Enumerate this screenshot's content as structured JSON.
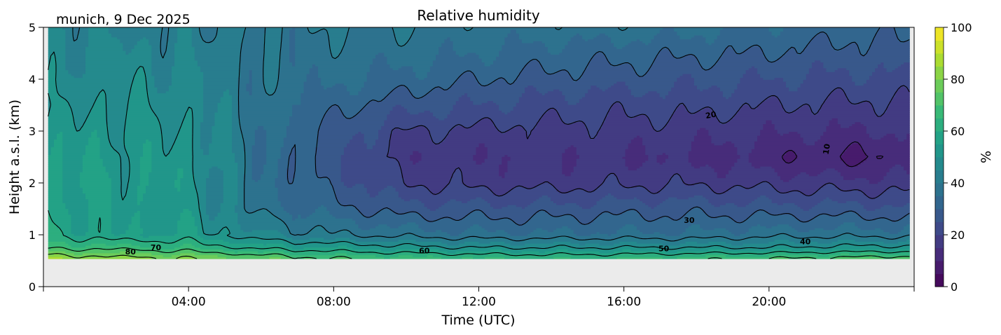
{
  "chart_data": {
    "type": "heatmap",
    "title": "Relative humidity",
    "subtitle": "munich, 9 Dec 2025",
    "xlabel": "Time (UTC)",
    "ylabel": "Height a.s.l. (km)",
    "colorbar_label": "%",
    "colormap": "viridis",
    "xlim_hours": [
      0,
      24
    ],
    "ylim_km": [
      0,
      5
    ],
    "data_extent": {
      "t": [
        0.13,
        23.87
      ],
      "h": [
        0.54,
        5
      ]
    },
    "x_ticks": [
      {
        "v": 0,
        "label": ""
      },
      {
        "v": 4,
        "label": "04:00"
      },
      {
        "v": 8,
        "label": "08:00"
      },
      {
        "v": 12,
        "label": "12:00"
      },
      {
        "v": 16,
        "label": "16:00"
      },
      {
        "v": 20,
        "label": "20:00"
      },
      {
        "v": 24,
        "label": ""
      }
    ],
    "y_ticks": [
      {
        "v": 0,
        "label": "0"
      },
      {
        "v": 1,
        "label": "1"
      },
      {
        "v": 2,
        "label": "2"
      },
      {
        "v": 3,
        "label": "3"
      },
      {
        "v": 4,
        "label": "4"
      },
      {
        "v": 5,
        "label": "5"
      }
    ],
    "colorbar_ticks": [
      {
        "v": 0,
        "label": "0"
      },
      {
        "v": 20,
        "label": "20"
      },
      {
        "v": 40,
        "label": "40"
      },
      {
        "v": 60,
        "label": "60"
      },
      {
        "v": 80,
        "label": "80"
      },
      {
        "v": 100,
        "label": "100"
      }
    ],
    "colorbar_range": [
      0,
      100
    ],
    "fill_level_step": 5,
    "contour_levels": [
      10,
      20,
      30,
      40,
      50,
      60,
      70,
      80
    ],
    "grid_times_h": [
      0,
      2,
      4,
      6,
      8,
      10,
      12,
      14,
      16,
      18,
      20,
      22,
      24
    ],
    "grid_heights_km": [
      0.55,
      0.75,
      1.0,
      1.5,
      2.0,
      2.5,
      3.0,
      3.5,
      4.0,
      4.5,
      5.0
    ],
    "rh_percent": [
      [
        85,
        68,
        60,
        58,
        57,
        55,
        52,
        48,
        46,
        45,
        45
      ],
      [
        82,
        68,
        55,
        54,
        54,
        53,
        52,
        50,
        48,
        46,
        44
      ],
      [
        80,
        65,
        55,
        52,
        52,
        52,
        50,
        48,
        46,
        44,
        42
      ],
      [
        75,
        58,
        45,
        38,
        36,
        36,
        37,
        38,
        38,
        38,
        39
      ],
      [
        70,
        55,
        40,
        32,
        28,
        27,
        28,
        32,
        36,
        38,
        40
      ],
      [
        68,
        52,
        38,
        27,
        20,
        17,
        20,
        27,
        33,
        37,
        40
      ],
      [
        66,
        50,
        36,
        27,
        18,
        16,
        19,
        25,
        30,
        35,
        38
      ],
      [
        65,
        50,
        36,
        27,
        18,
        16,
        18,
        23,
        28,
        33,
        38
      ],
      [
        66,
        50,
        36,
        28,
        19,
        15,
        18,
        22,
        27,
        32,
        38
      ],
      [
        68,
        50,
        36,
        28,
        19,
        14,
        17,
        22,
        26,
        31,
        36
      ],
      [
        70,
        50,
        38,
        27,
        18,
        12,
        16,
        20,
        25,
        30,
        34
      ],
      [
        72,
        52,
        38,
        27,
        17,
        9,
        15,
        19,
        24,
        28,
        32
      ],
      [
        74,
        52,
        38,
        26,
        17,
        11,
        15,
        19,
        24,
        28,
        31
      ]
    ],
    "contour_labels": [
      {
        "text": "80",
        "t": 2.4,
        "h": 0.66,
        "rot": 0
      },
      {
        "text": "70",
        "t": 3.1,
        "h": 0.74,
        "rot": 0
      },
      {
        "text": "60",
        "t": 10.5,
        "h": 0.68,
        "rot": 0
      },
      {
        "text": "50",
        "t": 17.1,
        "h": 0.72,
        "rot": 0
      },
      {
        "text": "40",
        "t": 21.0,
        "h": 0.86,
        "rot": 0
      },
      {
        "text": "30",
        "t": 17.8,
        "h": 1.27,
        "rot": 0
      },
      {
        "text": "20",
        "t": 18.4,
        "h": 3.3,
        "rot": -10
      },
      {
        "text": "10",
        "t": 21.6,
        "h": 2.65,
        "rot": -80
      }
    ]
  }
}
